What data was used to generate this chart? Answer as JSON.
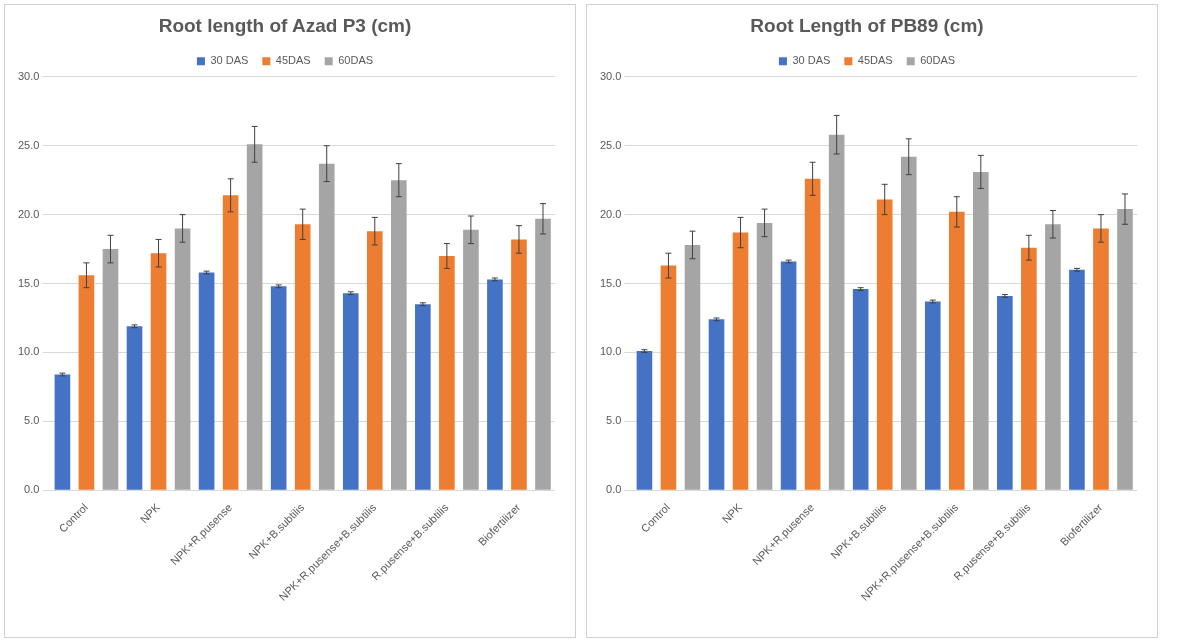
{
  "chart_data": [
    {
      "type": "bar",
      "title": "Root length of Azad P3 (cm)",
      "categories": [
        "Control",
        "NPK",
        "NPK+R.pusense",
        "NPK+B.subtilis",
        "NPK+R.pusense+B.subtilis",
        "R.pusense+B.subtilis",
        "Biofertilizer"
      ],
      "series": [
        {
          "name": "30 DAS",
          "color": "#4472c4",
          "values": [
            8.4,
            11.9,
            15.8,
            14.8,
            14.3,
            13.5,
            15.3
          ],
          "errors": [
            0.1,
            0.1,
            0.1,
            0.1,
            0.1,
            0.1,
            0.1
          ]
        },
        {
          "name": "45DAS",
          "color": "#ed7d31",
          "values": [
            15.6,
            17.2,
            21.4,
            19.3,
            18.8,
            17.0,
            18.2
          ],
          "errors": [
            0.9,
            1.0,
            1.2,
            1.1,
            1.0,
            0.9,
            1.0
          ]
        },
        {
          "name": "60DAS",
          "color": "#a5a5a5",
          "values": [
            17.5,
            19.0,
            25.1,
            23.7,
            22.5,
            18.9,
            19.7
          ],
          "errors": [
            1.0,
            1.0,
            1.3,
            1.3,
            1.2,
            1.0,
            1.1
          ]
        }
      ],
      "ylim": [
        0,
        30
      ],
      "yticks": [
        {
          "value": 0,
          "label": "0.0"
        },
        {
          "value": 5,
          "label": "5.0"
        },
        {
          "value": 10,
          "label": "10.0"
        },
        {
          "value": 15,
          "label": "15.0"
        },
        {
          "value": 20,
          "label": "20.0"
        },
        {
          "value": 25,
          "label": "25.0"
        },
        {
          "value": 30,
          "label": "30.0"
        }
      ],
      "grid": "y",
      "legend": "top"
    },
    {
      "type": "bar",
      "title": "Root Length of PB89 (cm)",
      "categories": [
        "Control",
        "NPK",
        "NPK+R.pusense",
        "NPK+B.subtilis",
        "NPK+R.pusense+B.subtilis",
        "R.pusense+B.subtilis",
        "Biofertilizer"
      ],
      "series": [
        {
          "name": "30 DAS",
          "color": "#4472c4",
          "values": [
            10.1,
            12.4,
            16.6,
            14.6,
            13.7,
            14.1,
            16.0
          ],
          "errors": [
            0.1,
            0.1,
            0.1,
            0.1,
            0.1,
            0.1,
            0.1
          ]
        },
        {
          "name": "45DAS",
          "color": "#ed7d31",
          "values": [
            16.3,
            18.7,
            22.6,
            21.1,
            20.2,
            17.6,
            19.0
          ],
          "errors": [
            0.9,
            1.1,
            1.2,
            1.1,
            1.1,
            0.9,
            1.0
          ]
        },
        {
          "name": "60DAS",
          "color": "#a5a5a5",
          "values": [
            17.8,
            19.4,
            25.8,
            24.2,
            23.1,
            19.3,
            20.4
          ],
          "errors": [
            1.0,
            1.0,
            1.4,
            1.3,
            1.2,
            1.0,
            1.1
          ]
        }
      ],
      "ylim": [
        0,
        30
      ],
      "yticks": [
        {
          "value": 0,
          "label": "0.0"
        },
        {
          "value": 5,
          "label": "5.0"
        },
        {
          "value": 10,
          "label": "10.0"
        },
        {
          "value": 15,
          "label": "15.0"
        },
        {
          "value": 20,
          "label": "20.0"
        },
        {
          "value": 25,
          "label": "25.0"
        },
        {
          "value": 30,
          "label": "30.0"
        }
      ],
      "grid": "y",
      "legend": "top"
    }
  ]
}
